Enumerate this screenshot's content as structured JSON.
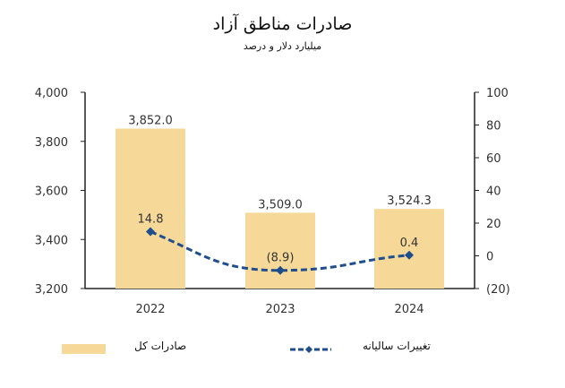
{
  "chart_data": {
    "type": "bar",
    "title": "صادرات مناطق آزاد",
    "subtitle": "میلیارد دلار و درصد",
    "categories": [
      "2022",
      "2023",
      "2024"
    ],
    "series": [
      {
        "name": "صادرات کل",
        "type": "bar",
        "axis": "left",
        "values": [
          3852.0,
          3509.0,
          3524.3
        ],
        "labels": [
          "3,852.0",
          "3,509.0",
          "3,524.3"
        ],
        "color": "#f6d898"
      },
      {
        "name": "تغییرات سالیانه",
        "type": "line",
        "axis": "right",
        "values": [
          14.8,
          -8.9,
          0.4
        ],
        "labels": [
          "14.8",
          "(8.9)",
          "0.4"
        ],
        "color": "#1f4e8c"
      }
    ],
    "left_axis": {
      "range": [
        3200,
        4000
      ],
      "ticks": [
        "3,200",
        "3,400",
        "3,600",
        "3,800",
        "4,000"
      ],
      "tick_values": [
        3200,
        3400,
        3600,
        3800,
        4000
      ]
    },
    "right_axis": {
      "range": [
        -20,
        100
      ],
      "ticks": [
        "(20)",
        "0",
        "20",
        "40",
        "60",
        "80",
        "100"
      ],
      "tick_values": [
        -20,
        0,
        20,
        40,
        60,
        80,
        100
      ]
    },
    "grid": false,
    "legend_placement": "bottom"
  }
}
